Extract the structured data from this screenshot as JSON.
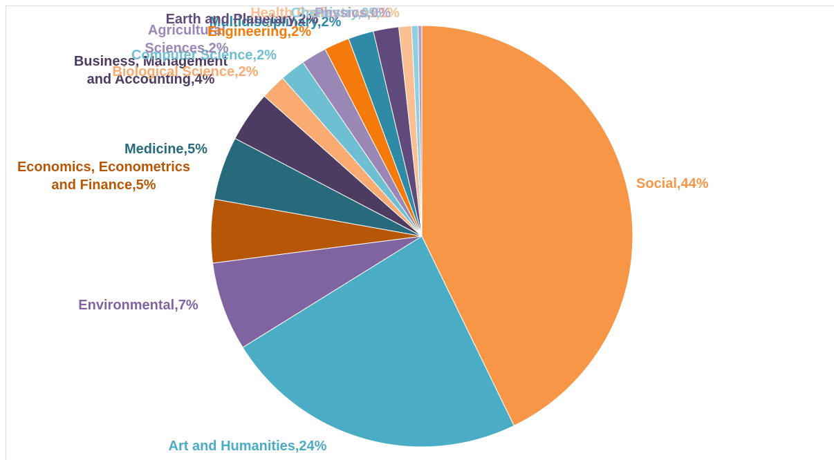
{
  "chart_data": {
    "type": "pie",
    "slices": [
      {
        "name": "Social",
        "label": "Social,44%",
        "value": 44,
        "color": "#f79646"
      },
      {
        "name": "Art and Humanities",
        "label": "Art and Humanities,24%",
        "value": 24,
        "color": "#4bacc6"
      },
      {
        "name": "Environmental",
        "label": "Environmental,7%",
        "value": 7,
        "color": "#8064a2"
      },
      {
        "name": "Economics, Econometrics and Finance",
        "label": "Economics, Econometrics\nand Finance,5%",
        "value": 5,
        "color": "#b65708"
      },
      {
        "name": "Medicine",
        "label": "Medicine,5%",
        "value": 5,
        "color": "#276a7c"
      },
      {
        "name": "Business, Management and Accounting",
        "label": "Business, Management\nand Accounting,4%",
        "value": 4,
        "color": "#4d3b62"
      },
      {
        "name": "Biological Science",
        "label": "Biological Science,2%",
        "value": 2,
        "color": "#f9ab72"
      },
      {
        "name": "Computer Science",
        "label": "Computer Science,2%",
        "value": 2,
        "color": "#6fbfd3"
      },
      {
        "name": "Agricultural Sciences",
        "label": "Agricultural\nSciences,2%",
        "value": 2,
        "color": "#9b87b6"
      },
      {
        "name": "Engineering",
        "label": "Engineering,2%",
        "value": 2,
        "color": "#f47b0b"
      },
      {
        "name": "Multidisciplinary",
        "label": "Multidisciplinary,2%",
        "value": 2,
        "color": "#2e8aa5"
      },
      {
        "name": "Earth and Planetary Sciences",
        "label": "Earth and Planetary,2%",
        "value": 2,
        "color": "#604a7b"
      },
      {
        "name": "Health Professions",
        "label": "Health Professions,1%",
        "value": 1,
        "color": "#fbbf94"
      },
      {
        "name": "Chemistry",
        "label": "Chemistry,0%",
        "value": 0.5,
        "color": "#8fcfe0"
      },
      {
        "name": "Physics",
        "label": "Physics,0%",
        "value": 0.3,
        "color": "#b3a2c8"
      }
    ]
  }
}
